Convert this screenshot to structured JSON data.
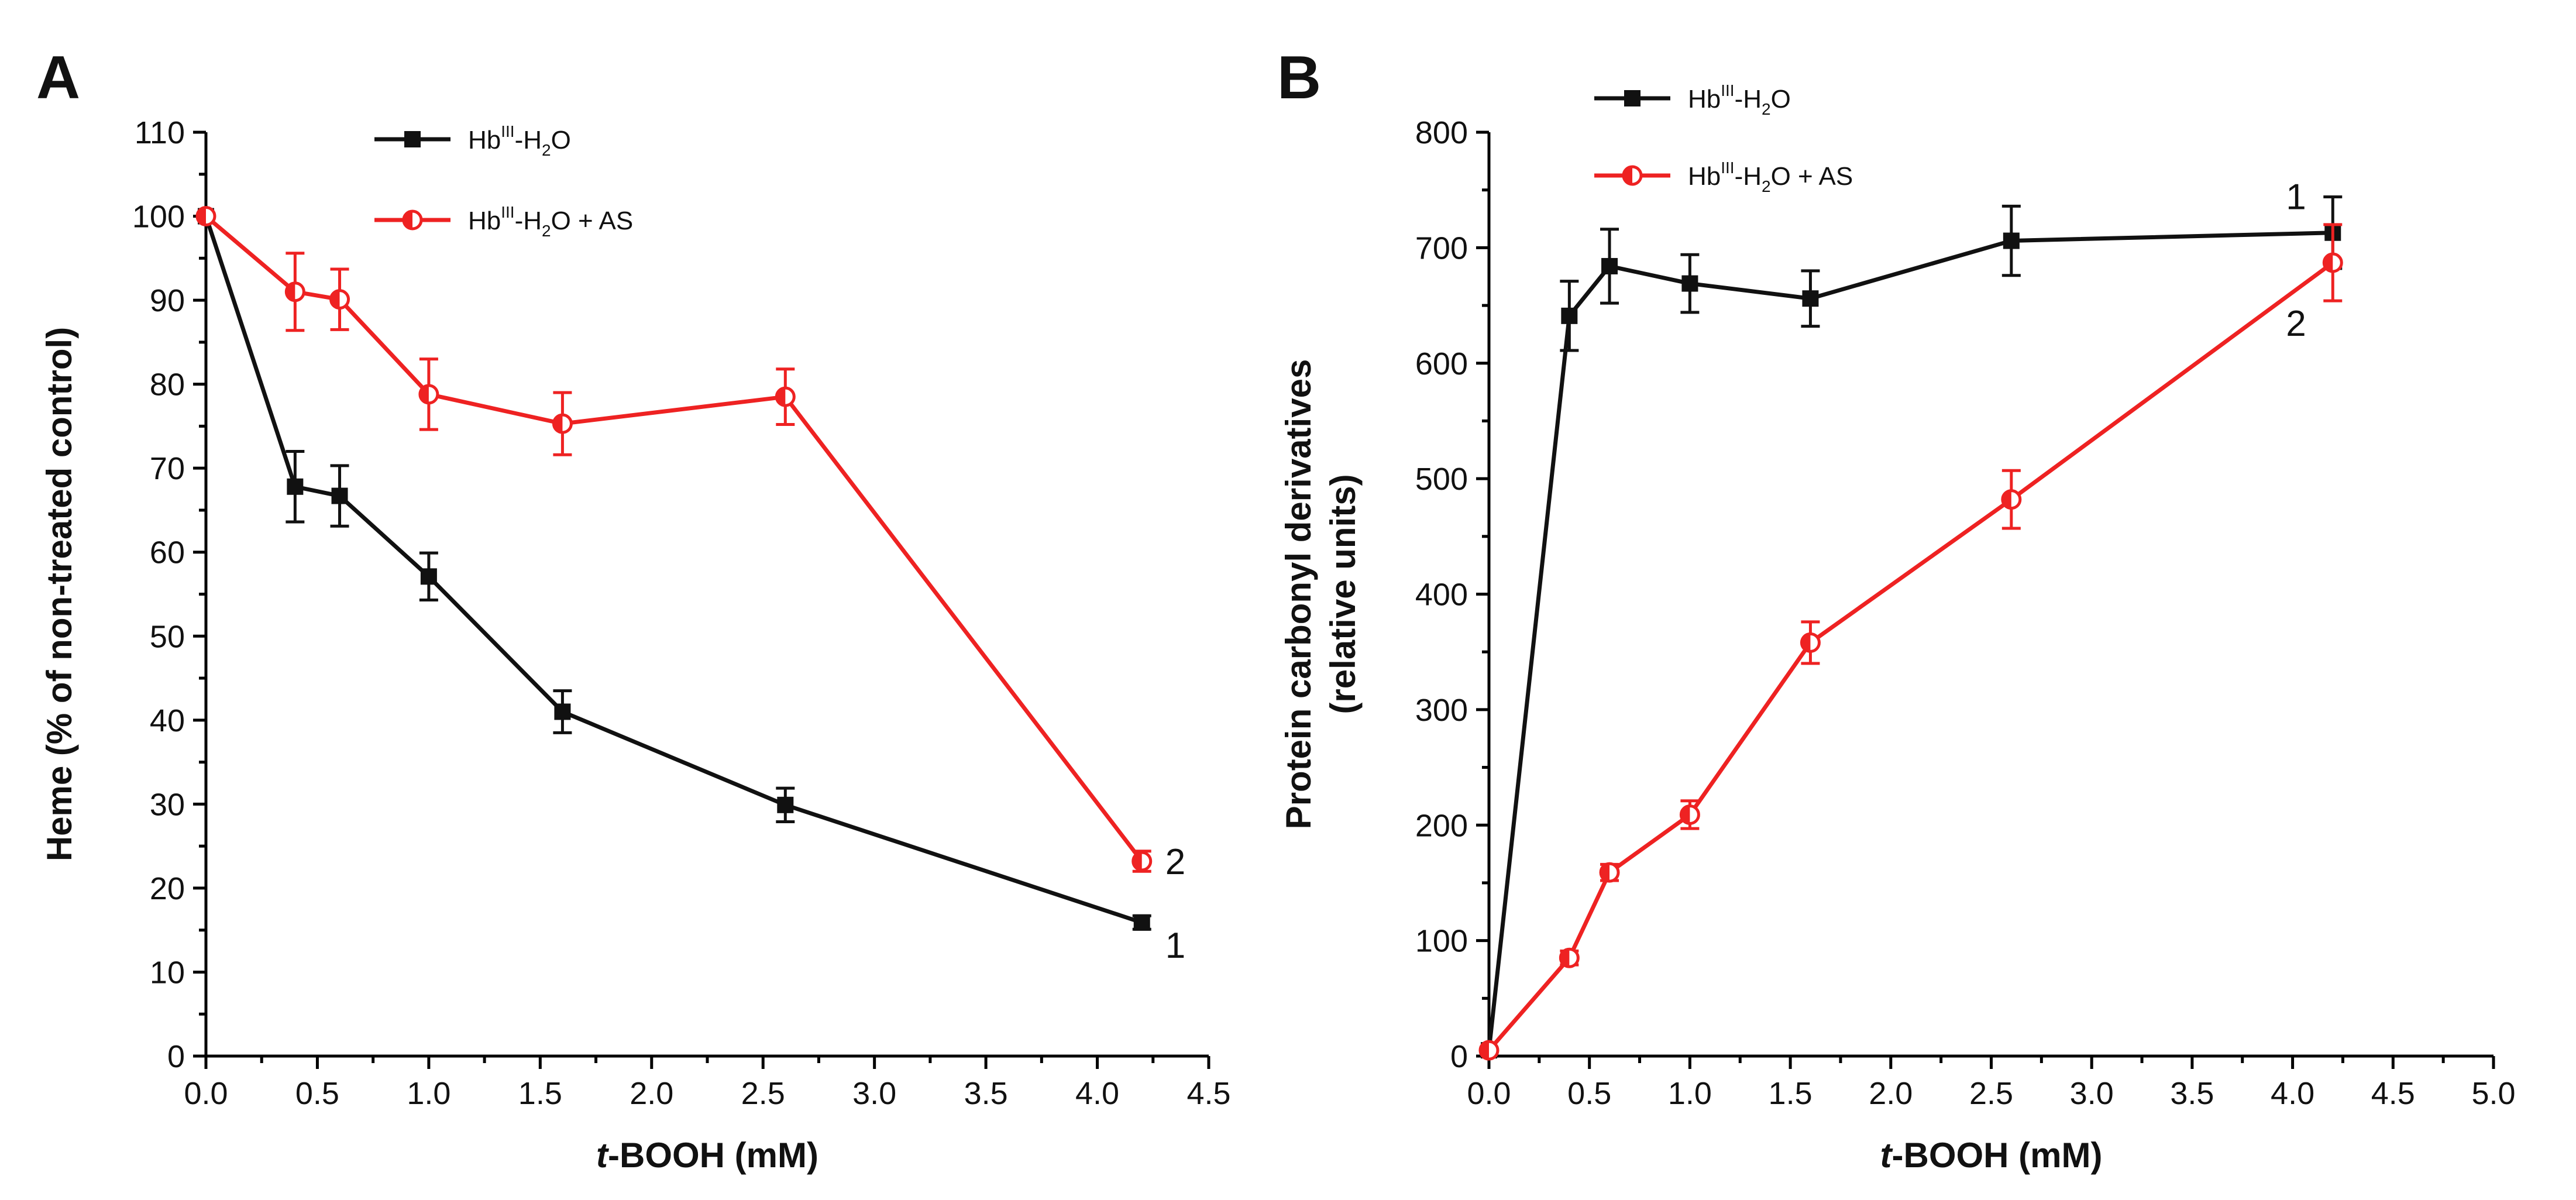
{
  "chart_data": [
    {
      "panel": "A",
      "type": "line",
      "xlabel_italic": "t",
      "xlabel_rest": "-BOOH (mM)",
      "ylabel": "Heme (% of non-treated control)",
      "xlim": [
        0,
        4.5
      ],
      "ylim": [
        0,
        110
      ],
      "xticks": [
        "0.0",
        "0.5",
        "1.0",
        "1.5",
        "2.0",
        "2.5",
        "3.0",
        "3.5",
        "4.0",
        "4.5"
      ],
      "yticks": [
        "0",
        "10",
        "20",
        "30",
        "40",
        "50",
        "60",
        "70",
        "80",
        "90",
        "100",
        "110"
      ],
      "legend_position": "top-center",
      "series": [
        {
          "name": "Hb^III-H2O",
          "legend": {
            "base": "Hb",
            "sup": "III",
            "mid": "-H",
            "sub": "2",
            "tail": "O"
          },
          "color": "#111111",
          "marker": "square-filled",
          "curve_label": "1",
          "x": [
            0,
            0.4,
            0.6,
            1.0,
            1.6,
            2.6,
            4.2
          ],
          "y": [
            100,
            67.8,
            66.7,
            57.1,
            41.0,
            29.9,
            15.9
          ],
          "err": [
            0,
            4.2,
            3.6,
            2.8,
            2.5,
            2.0,
            0.8
          ]
        },
        {
          "name": "Hb^III-H2O + AS",
          "legend": {
            "base": "Hb",
            "sup": "III",
            "mid": "-H",
            "sub": "2",
            "tail": "O + AS"
          },
          "color": "#ee2222",
          "marker": "circle-half",
          "curve_label": "2",
          "x": [
            0,
            0.4,
            0.6,
            1.0,
            1.6,
            2.6,
            4.2
          ],
          "y": [
            100,
            91.0,
            90.1,
            78.8,
            75.3,
            78.5,
            23.2
          ],
          "err": [
            0,
            4.6,
            3.6,
            4.2,
            3.7,
            3.3,
            1.2
          ]
        }
      ]
    },
    {
      "panel": "B",
      "type": "line",
      "xlabel_italic": "t",
      "xlabel_rest": "-BOOH (mM)",
      "ylabel_lines": [
        "Protein carbonyl derivatives",
        "(relative units)"
      ],
      "xlim": [
        0,
        5.0
      ],
      "ylim": [
        0,
        800
      ],
      "xticks": [
        "0.0",
        "0.5",
        "1.0",
        "1.5",
        "2.0",
        "2.5",
        "3.0",
        "3.5",
        "4.0",
        "4.5",
        "5.0"
      ],
      "yticks": [
        "0",
        "100",
        "200",
        "300",
        "400",
        "500",
        "600",
        "700",
        "800"
      ],
      "legend_position": "top-left",
      "series": [
        {
          "name": "Hb^III-H2O",
          "legend": {
            "base": "Hb",
            "sup": "III",
            "mid": "-H",
            "sub": "2",
            "tail": "O"
          },
          "color": "#111111",
          "marker": "square-filled",
          "curve_label": "1",
          "x": [
            0,
            0.4,
            0.6,
            1.0,
            1.6,
            2.6,
            4.2
          ],
          "y": [
            5,
            641,
            684,
            669,
            656,
            706,
            713
          ],
          "err": [
            0,
            30,
            32,
            25,
            24,
            30,
            31
          ]
        },
        {
          "name": "Hb^III-H2O + AS",
          "legend": {
            "base": "Hb",
            "sup": "III",
            "mid": "-H",
            "sub": "2",
            "tail": "O + AS"
          },
          "color": "#ee2222",
          "marker": "circle-half",
          "curve_label": "2",
          "x": [
            0,
            0.4,
            0.6,
            1.0,
            1.6,
            2.6,
            4.2
          ],
          "y": [
            5,
            85,
            159,
            209,
            358,
            482,
            687
          ],
          "err": [
            0,
            6,
            7,
            12,
            18,
            25,
            33
          ]
        }
      ]
    }
  ]
}
